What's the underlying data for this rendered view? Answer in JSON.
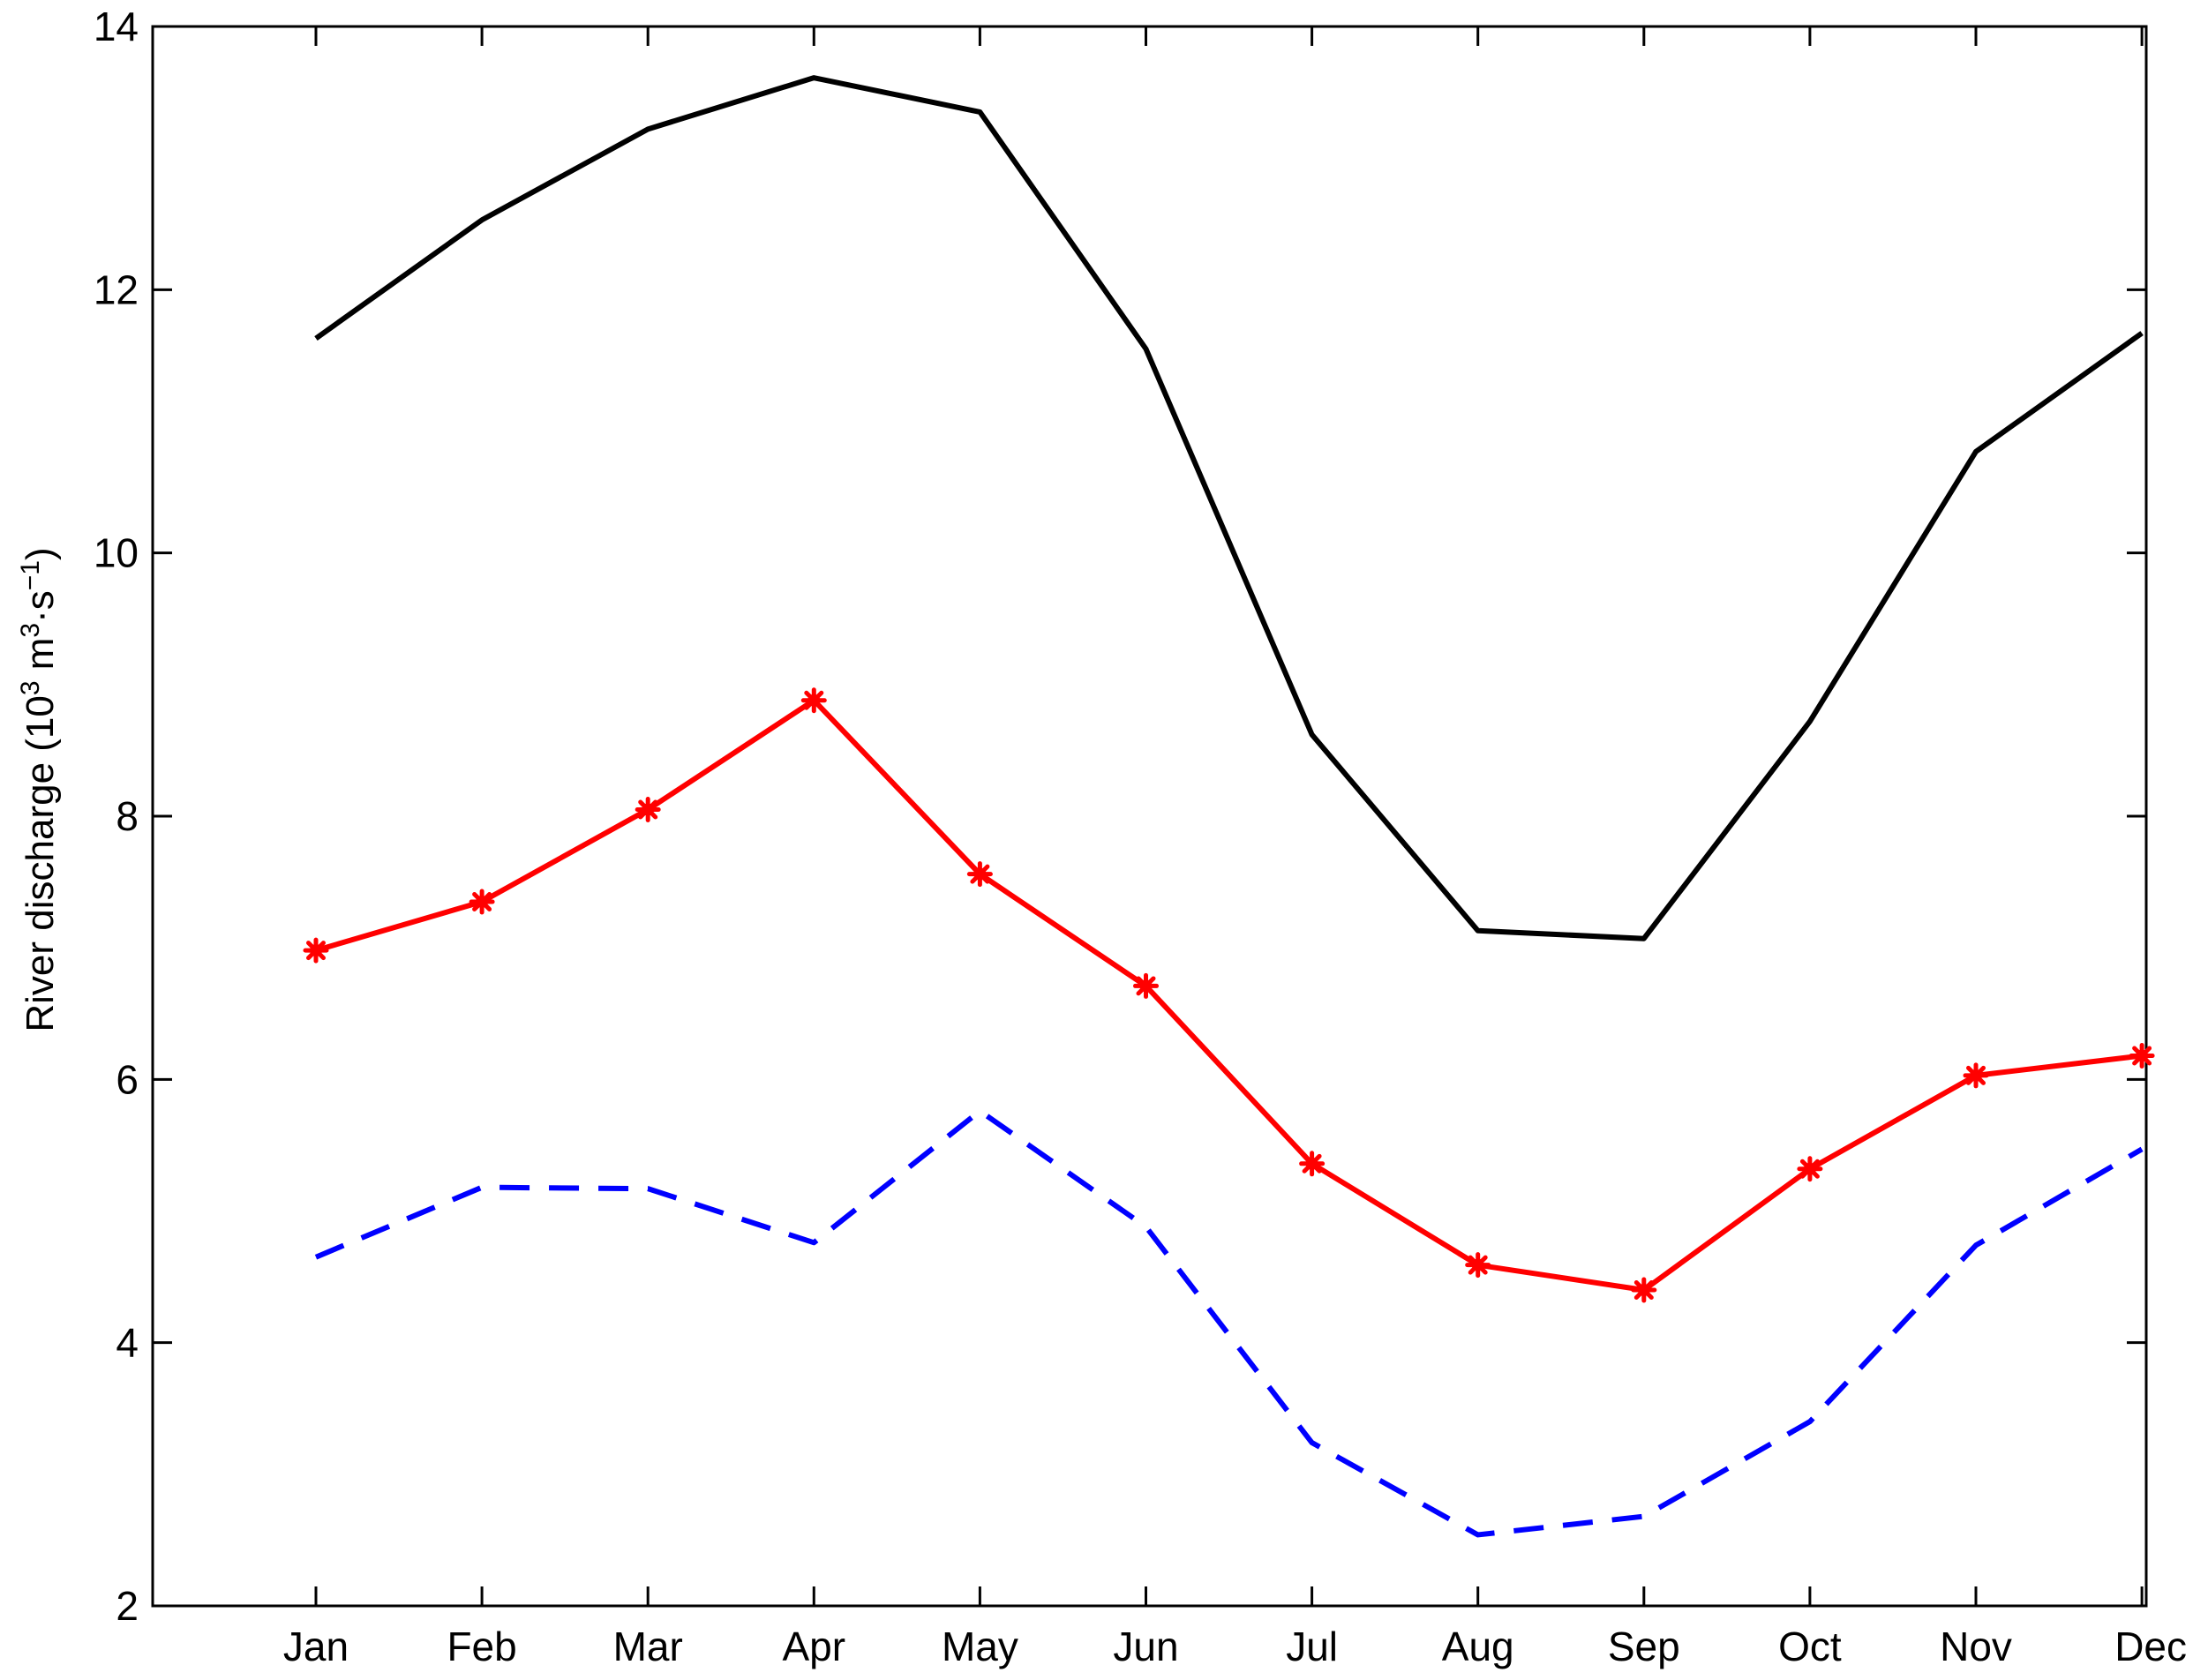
{
  "chart_data": {
    "type": "line",
    "title": "",
    "xlabel": "",
    "ylabel": {
      "prefix": "River discharge (10",
      "exp1": "3",
      "mid": " m",
      "exp2": "3",
      "mid2": "·s",
      "exp3": "−1",
      "suffix": ")"
    },
    "ylim": [
      2,
      14
    ],
    "yticks": [
      2,
      4,
      6,
      8,
      10,
      12,
      14
    ],
    "categories": [
      "Jan",
      "Feb",
      "Mar",
      "Apr",
      "May",
      "Jun",
      "Jul",
      "Aug",
      "Sep",
      "Oct",
      "Nov",
      "Dec"
    ],
    "grid": false,
    "series": [
      {
        "color": "#000000",
        "style": "solid",
        "marker": "none",
        "values": [
          11.63,
          12.53,
          13.22,
          13.61,
          13.35,
          11.55,
          8.62,
          7.13,
          7.07,
          8.72,
          10.77,
          11.67
        ]
      },
      {
        "color": "#ff0000",
        "style": "solid",
        "marker": "asterisk",
        "values": [
          6.98,
          7.35,
          8.05,
          8.88,
          7.56,
          6.71,
          5.36,
          4.59,
          4.4,
          5.32,
          6.03,
          6.18
        ]
      },
      {
        "color": "#0000ff",
        "style": "dashed",
        "marker": "none",
        "values": [
          4.65,
          5.18,
          5.17,
          4.76,
          5.76,
          4.88,
          3.24,
          2.54,
          2.68,
          3.4,
          4.74,
          5.47
        ]
      }
    ]
  }
}
